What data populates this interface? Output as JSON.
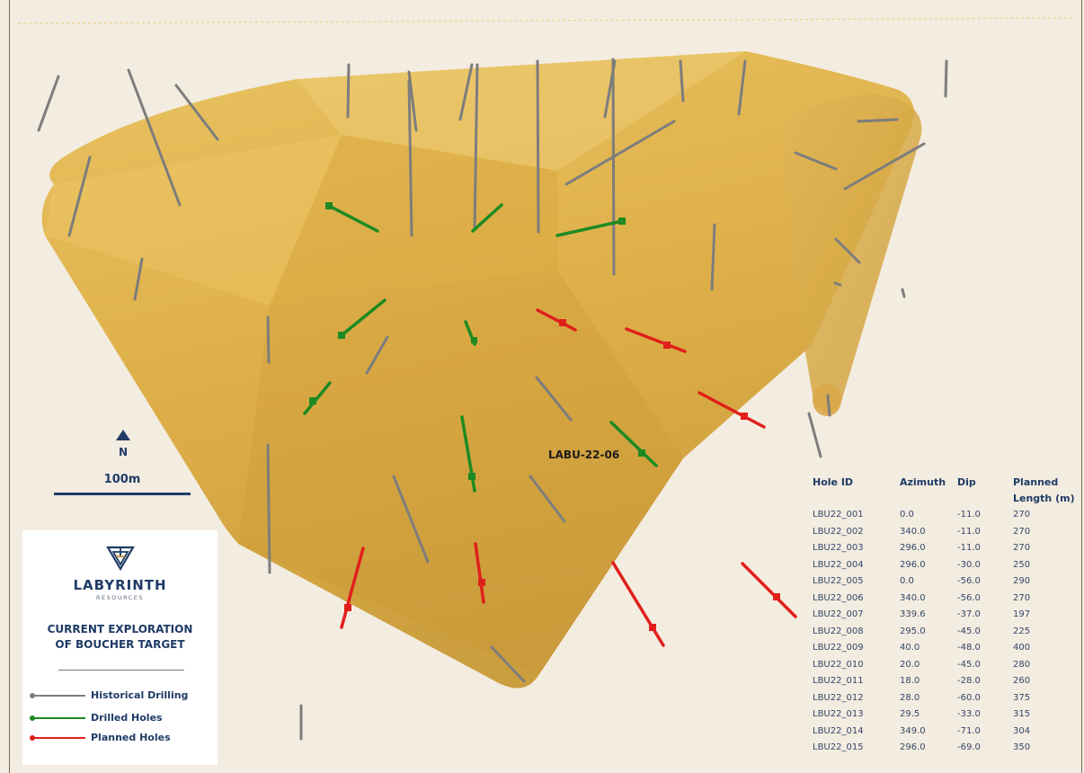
{
  "map": {
    "callout_label": "LABU-22-06",
    "north_label": "N",
    "scale_label": "100m",
    "colors": {
      "background": "#f3ece0",
      "orebody": "#d9a83f",
      "historical": "#7d7d7d",
      "drilled": "#1e8a22",
      "planned": "#e0201b",
      "text_navy": "#1f3b66"
    }
  },
  "legend_panel": {
    "logo_name": "LABYRINTH",
    "logo_sub": "RESOURCES",
    "title_line1": "CURRENT EXPLORATION",
    "title_line2": "OF BOUCHER TARGET",
    "items": [
      {
        "label": "Historical Drilling",
        "color": "#7d7d7d"
      },
      {
        "label": "Drilled Holes",
        "color": "#1e8a22"
      },
      {
        "label": "Planned Holes",
        "color": "#e0201b"
      }
    ]
  },
  "hole_table": {
    "headers": [
      "Hole ID",
      "Azimuth",
      "Dip",
      "Planned",
      "Length (m)"
    ],
    "rows": [
      [
        "LBU22_001",
        "0.0",
        "-11.0",
        "270"
      ],
      [
        "LBU22_002",
        "340.0",
        "-11.0",
        "270"
      ],
      [
        "LBU22_003",
        "296.0",
        "-11.0",
        "270"
      ],
      [
        "LBU22_004",
        "296.0",
        "-30.0",
        "250"
      ],
      [
        "LBU22_005",
        "0.0",
        "-56.0",
        "290"
      ],
      [
        "LBU22_006",
        "340.0",
        "-56.0",
        "270"
      ],
      [
        "LBU22_007",
        "339.6",
        "-37.0",
        "197"
      ],
      [
        "LBU22_008",
        "295.0",
        "-45.0",
        "225"
      ],
      [
        "LBU22_009",
        "40.0",
        "-48.0",
        "400"
      ],
      [
        "LBU22_010",
        "20.0",
        "-45.0",
        "280"
      ],
      [
        "LBU22_011",
        "18.0",
        "-28.0",
        "260"
      ],
      [
        "LBU22_012",
        "28.0",
        "-60.0",
        "375"
      ],
      [
        "LBU22_013",
        "29.5",
        "-33.0",
        "315"
      ],
      [
        "LBU22_014",
        "349.0",
        "-71.0",
        "304"
      ],
      [
        "LBU22_015",
        "296.0",
        "-69.0",
        "350"
      ]
    ]
  }
}
